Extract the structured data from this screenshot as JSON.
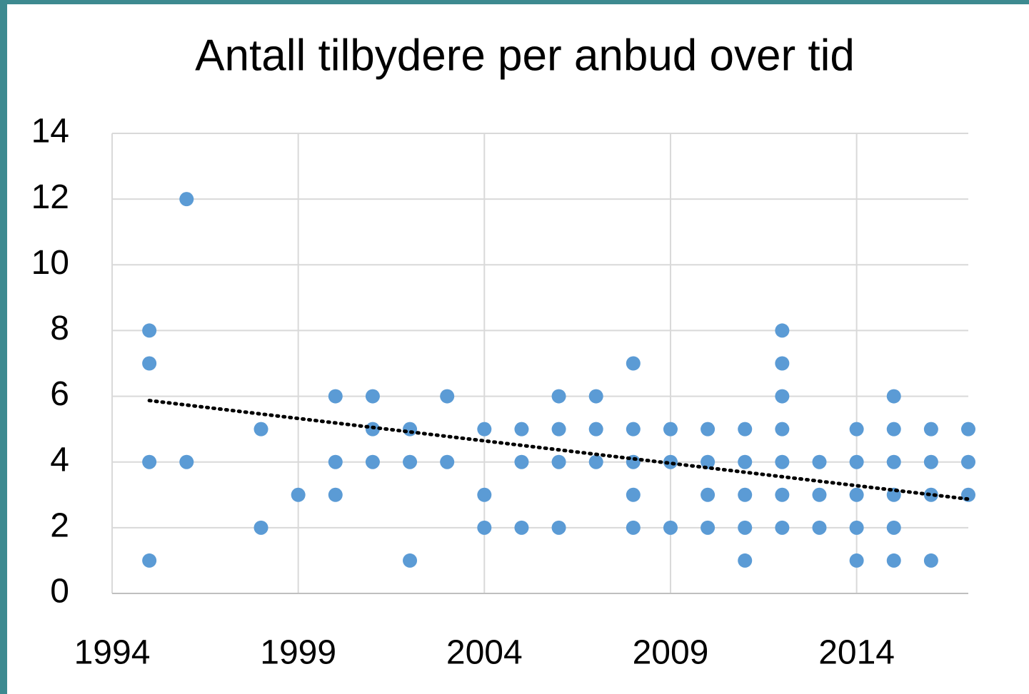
{
  "chart_data": {
    "type": "scatter",
    "title": "Antall tilbydere per anbud over tid",
    "x": [
      1995,
      1995,
      1995,
      1995,
      1996,
      1996,
      1998,
      1998,
      1999,
      2000,
      2000,
      2000,
      2001,
      2001,
      2001,
      2002,
      2002,
      2002,
      2003,
      2003,
      2004,
      2004,
      2004,
      2005,
      2005,
      2005,
      2006,
      2006,
      2006,
      2006,
      2007,
      2007,
      2007,
      2008,
      2008,
      2008,
      2008,
      2008,
      2009,
      2009,
      2009,
      2010,
      2010,
      2010,
      2010,
      2011,
      2011,
      2011,
      2011,
      2011,
      2012,
      2012,
      2012,
      2012,
      2012,
      2012,
      2012,
      2013,
      2013,
      2013,
      2014,
      2014,
      2014,
      2014,
      2014,
      2015,
      2015,
      2015,
      2015,
      2015,
      2015,
      2016,
      2016,
      2016,
      2016,
      2017,
      2017,
      2017
    ],
    "values": [
      8,
      7,
      4,
      1,
      12,
      4,
      5,
      2,
      3,
      6,
      4,
      3,
      6,
      5,
      4,
      5,
      4,
      1,
      6,
      4,
      5,
      3,
      2,
      5,
      4,
      2,
      6,
      5,
      4,
      2,
      6,
      5,
      4,
      7,
      5,
      4,
      3,
      2,
      5,
      4,
      2,
      5,
      4,
      3,
      2,
      5,
      4,
      3,
      2,
      1,
      8,
      7,
      6,
      5,
      4,
      3,
      2,
      4,
      3,
      2,
      5,
      4,
      3,
      2,
      1,
      6,
      5,
      4,
      3,
      2,
      1,
      5,
      4,
      3,
      1,
      5,
      4,
      3
    ],
    "color": "#5b9bd5",
    "trendline": {
      "x": [
        1995,
        2017
      ],
      "values": [
        5.87,
        2.87
      ],
      "color": "#000000"
    },
    "xlim": [
      1994,
      2017
    ],
    "xticks": [
      1994,
      1999,
      2004,
      2009,
      2014
    ],
    "ylim": [
      0,
      14
    ],
    "yticks": [
      0,
      2,
      4,
      6,
      8,
      10,
      12,
      14
    ],
    "grid": true
  }
}
